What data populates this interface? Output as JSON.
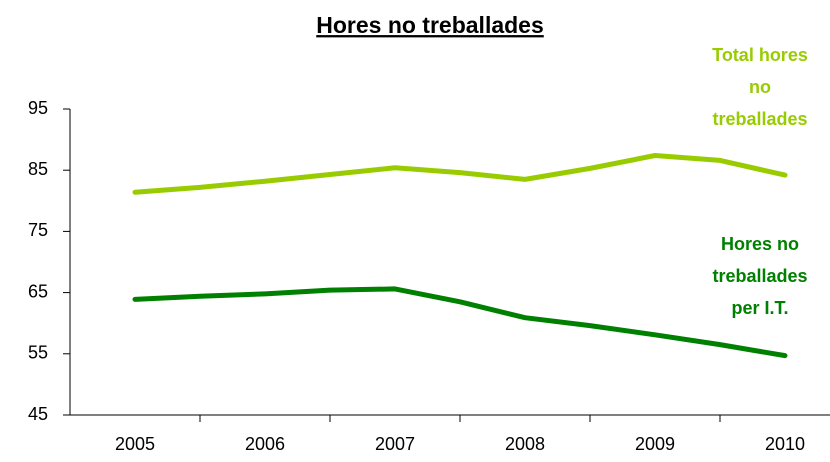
{
  "chart_data": {
    "type": "line",
    "title": "Hores no treballades",
    "x": [
      2005,
      2005.5,
      2006,
      2006.5,
      2007,
      2007.5,
      2008,
      2008.5,
      2009,
      2009.5,
      2010
    ],
    "xlim": [
      2004.5,
      2010.5
    ],
    "xticks": [
      2005,
      2006,
      2007,
      2008,
      2009,
      2010
    ],
    "ylim": [
      45,
      95
    ],
    "yticks": [
      45,
      55,
      65,
      75,
      85,
      95
    ],
    "grid": false,
    "series": [
      {
        "name": [
          "Total hores",
          "no",
          "treballades"
        ],
        "color": "#99cc00",
        "values": [
          81.4,
          82.2,
          83.2,
          84.3,
          85.4,
          84.6,
          83.5,
          85.3,
          87.4,
          86.6,
          84.2
        ]
      },
      {
        "name": [
          "Hores no",
          "treballades",
          "per I.T."
        ],
        "color": "#008000",
        "values": [
          63.9,
          64.4,
          64.8,
          65.4,
          65.6,
          63.5,
          60.9,
          59.6,
          58.1,
          56.5,
          54.7
        ]
      }
    ]
  }
}
